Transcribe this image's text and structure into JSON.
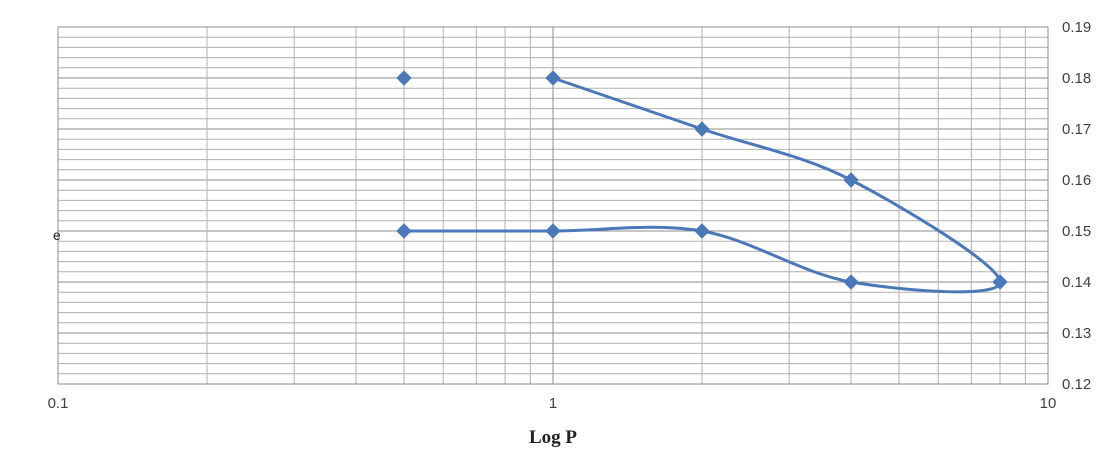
{
  "chart_data": {
    "type": "scatter",
    "title": "",
    "xlabel": "Log P",
    "ylabel": "e",
    "x_scale": "log",
    "xlim": [
      0.1,
      10
    ],
    "ylim": [
      0.12,
      0.19
    ],
    "x_tick_labels": [
      "0.1",
      "1",
      "10"
    ],
    "y_tick_labels": [
      "0.12",
      "0.13",
      "0.14",
      "0.15",
      "0.16",
      "0.17",
      "0.18",
      "0.19"
    ],
    "y_axis_position": "right",
    "grid": true,
    "legend": "none",
    "series": [
      {
        "color": "#4a78b8",
        "smooth_line": true,
        "points": [
          {
            "x": 0.5,
            "y": 0.18
          },
          {
            "x": 1,
            "y": 0.18
          },
          {
            "x": 2,
            "y": 0.17
          },
          {
            "x": 4,
            "y": 0.16
          },
          {
            "x": 8,
            "y": 0.14
          },
          {
            "x": 4,
            "y": 0.14
          },
          {
            "x": 2,
            "y": 0.15
          },
          {
            "x": 1,
            "y": 0.15
          },
          {
            "x": 0.5,
            "y": 0.15
          }
        ],
        "line_segments": [
          [
            1,
            8
          ]
        ]
      }
    ]
  }
}
